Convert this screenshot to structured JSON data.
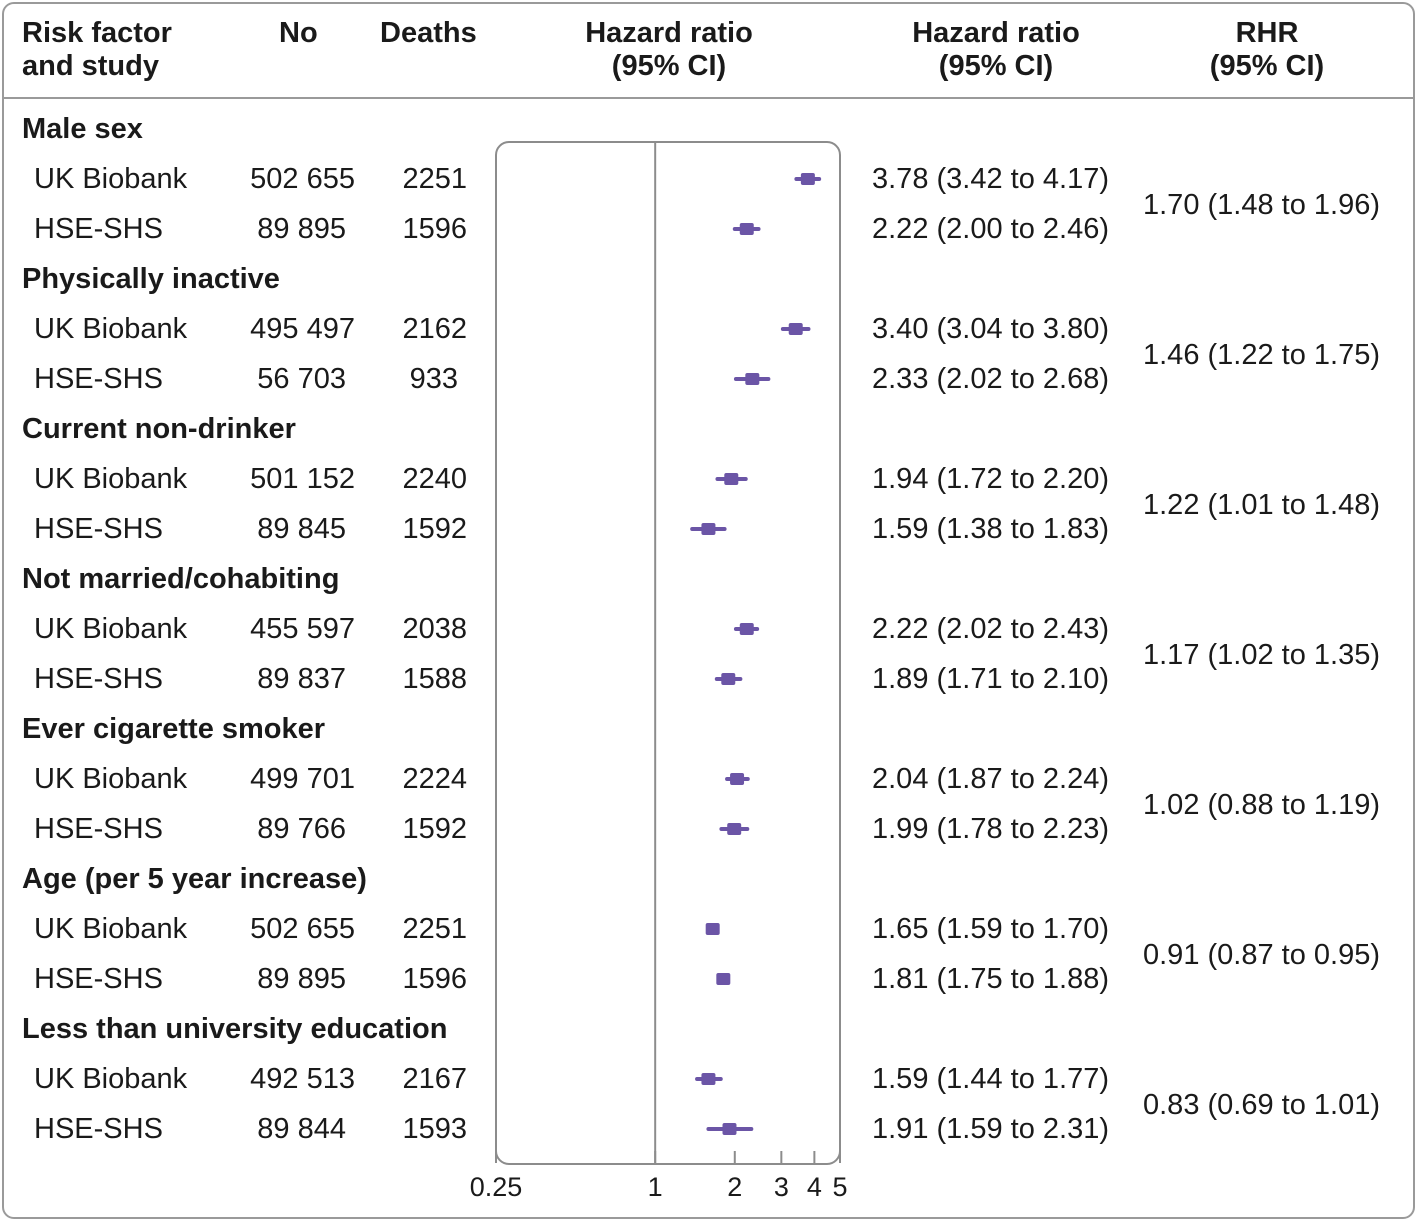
{
  "header": {
    "risk_factor_l1": "Risk factor",
    "risk_factor_l2": "and study",
    "no": "No",
    "deaths": "Deaths",
    "hr_plot_l1": "Hazard ratio",
    "hr_plot_l2": "(95% CI)",
    "hr_text_l1": "Hazard ratio",
    "hr_text_l2": "(95% CI)",
    "rhr_l1": "RHR",
    "rhr_l2": "(95% CI)"
  },
  "groups": [
    {
      "label": "Male sex",
      "rhr": "1.70 (1.48 to 1.96)",
      "rows": [
        {
          "study": "UK Biobank",
          "n": "502 655",
          "deaths": "2251",
          "hr_text": "3.78 (3.42 to 4.17)"
        },
        {
          "study": "HSE-SHS",
          "n": "89 895",
          "deaths": "1596",
          "hr_text": "2.22 (2.00 to 2.46)"
        }
      ]
    },
    {
      "label": "Physically inactive",
      "rhr": "1.46 (1.22 to 1.75)",
      "rows": [
        {
          "study": "UK Biobank",
          "n": "495 497",
          "deaths": "2162",
          "hr_text": "3.40 (3.04 to 3.80)"
        },
        {
          "study": "HSE-SHS",
          "n": "56 703",
          "deaths": "933",
          "hr_text": "2.33 (2.02 to 2.68)"
        }
      ]
    },
    {
      "label": "Current non-drinker",
      "rhr": "1.22 (1.01 to 1.48)",
      "rows": [
        {
          "study": "UK Biobank",
          "n": "501 152",
          "deaths": "2240",
          "hr_text": "1.94 (1.72 to 2.20)"
        },
        {
          "study": "HSE-SHS",
          "n": "89 845",
          "deaths": "1592",
          "hr_text": "1.59 (1.38 to 1.83)"
        }
      ]
    },
    {
      "label": "Not married/cohabiting",
      "rhr": "1.17 (1.02 to 1.35)",
      "rows": [
        {
          "study": "UK Biobank",
          "n": "455 597",
          "deaths": "2038",
          "hr_text": "2.22 (2.02 to 2.43)"
        },
        {
          "study": "HSE-SHS",
          "n": "89 837",
          "deaths": "1588",
          "hr_text": "1.89 (1.71 to 2.10)"
        }
      ]
    },
    {
      "label": "Ever cigarette smoker",
      "rhr": "1.02 (0.88 to 1.19)",
      "rows": [
        {
          "study": "UK Biobank",
          "n": "499 701",
          "deaths": "2224",
          "hr_text": "2.04 (1.87 to 2.24)"
        },
        {
          "study": "HSE-SHS",
          "n": "89 766",
          "deaths": "1592",
          "hr_text": "1.99 (1.78 to 2.23)"
        }
      ]
    },
    {
      "label": "Age (per 5 year increase)",
      "rhr": "0.91 (0.87 to 0.95)",
      "rows": [
        {
          "study": "UK Biobank",
          "n": "502 655",
          "deaths": "2251",
          "hr_text": "1.65 (1.59 to 1.70)"
        },
        {
          "study": "HSE-SHS",
          "n": "89 895",
          "deaths": "1596",
          "hr_text": "1.81 (1.75 to 1.88)"
        }
      ]
    },
    {
      "label": "Less than university education",
      "rhr": "0.83 (0.69 to 1.01)",
      "rows": [
        {
          "study": "UK Biobank",
          "n": "492 513",
          "deaths": "2167",
          "hr_text": "1.59 (1.44 to 1.77)"
        },
        {
          "study": "HSE-SHS",
          "n": "89 844",
          "deaths": "1593",
          "hr_text": "1.91 (1.59 to 2.31)"
        }
      ]
    }
  ],
  "chart_data": {
    "type": "forest",
    "scale": "log",
    "xlim": [
      0.25,
      5
    ],
    "reference_line": 1,
    "ticks": [
      {
        "value": 0.25,
        "label": "0.25"
      },
      {
        "value": 1,
        "label": "1"
      },
      {
        "value": 2,
        "label": "2"
      },
      {
        "value": 3,
        "label": "3"
      },
      {
        "value": 4,
        "label": "4"
      },
      {
        "value": 5,
        "label": "5"
      }
    ],
    "marker_color": "#6b55a6",
    "points": [
      {
        "group": "Male sex",
        "study": "UK Biobank",
        "hr": 3.78,
        "lo": 3.42,
        "hi": 4.17
      },
      {
        "group": "Male sex",
        "study": "HSE-SHS",
        "hr": 2.22,
        "lo": 2.0,
        "hi": 2.46
      },
      {
        "group": "Physically inactive",
        "study": "UK Biobank",
        "hr": 3.4,
        "lo": 3.04,
        "hi": 3.8
      },
      {
        "group": "Physically inactive",
        "study": "HSE-SHS",
        "hr": 2.33,
        "lo": 2.02,
        "hi": 2.68
      },
      {
        "group": "Current non-drinker",
        "study": "UK Biobank",
        "hr": 1.94,
        "lo": 1.72,
        "hi": 2.2
      },
      {
        "group": "Current non-drinker",
        "study": "HSE-SHS",
        "hr": 1.59,
        "lo": 1.38,
        "hi": 1.83
      },
      {
        "group": "Not married/cohabiting",
        "study": "UK Biobank",
        "hr": 2.22,
        "lo": 2.02,
        "hi": 2.43
      },
      {
        "group": "Not married/cohabiting",
        "study": "HSE-SHS",
        "hr": 1.89,
        "lo": 1.71,
        "hi": 2.1
      },
      {
        "group": "Ever cigarette smoker",
        "study": "UK Biobank",
        "hr": 2.04,
        "lo": 1.87,
        "hi": 2.24
      },
      {
        "group": "Ever cigarette smoker",
        "study": "HSE-SHS",
        "hr": 1.99,
        "lo": 1.78,
        "hi": 2.23
      },
      {
        "group": "Age (per 5 year increase)",
        "study": "UK Biobank",
        "hr": 1.65,
        "lo": 1.59,
        "hi": 1.7
      },
      {
        "group": "Age (per 5 year increase)",
        "study": "HSE-SHS",
        "hr": 1.81,
        "lo": 1.75,
        "hi": 1.88
      },
      {
        "group": "Less than university education",
        "study": "UK Biobank",
        "hr": 1.59,
        "lo": 1.44,
        "hi": 1.77
      },
      {
        "group": "Less than university education",
        "study": "HSE-SHS",
        "hr": 1.91,
        "lo": 1.59,
        "hi": 2.31
      }
    ]
  }
}
